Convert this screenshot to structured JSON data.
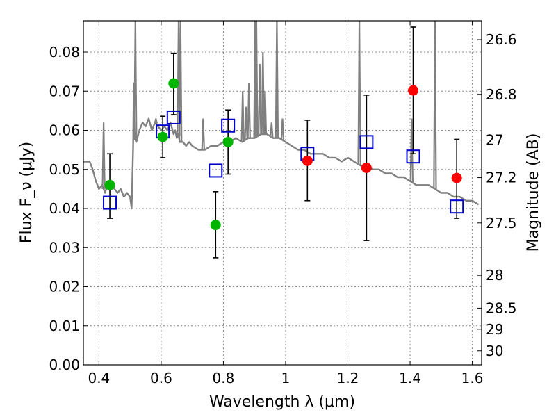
{
  "chart_data": {
    "type": "scatter",
    "xlabel": "Wavelength λ (μm)",
    "ylabel": "Flux F_ν (μJy)",
    "y2label": "Magnitude (AB)",
    "xlim": [
      0.35,
      1.63
    ],
    "ylim": [
      0.0,
      0.088
    ],
    "grid": true,
    "x_ticks": [
      0.4,
      0.6,
      0.8,
      1.0,
      1.2,
      1.4,
      1.6
    ],
    "x_tick_labels": [
      "0.4",
      "0.6",
      "0.8",
      "1",
      "1.2",
      "1.4",
      "1.6"
    ],
    "y_ticks": [
      0.0,
      0.01,
      0.02,
      0.03,
      0.04,
      0.05,
      0.06,
      0.07,
      0.08
    ],
    "y_tick_labels": [
      "0.00",
      "0.01",
      "0.02",
      "0.03",
      "0.04",
      "0.05",
      "0.06",
      "0.07",
      "0.08"
    ],
    "y2_ticks": [
      {
        "label": "26.6",
        "flux": 0.0832
      },
      {
        "label": "26.8",
        "flux": 0.0692
      },
      {
        "label": "27",
        "flux": 0.0575
      },
      {
        "label": "27.2",
        "flux": 0.0479
      },
      {
        "label": "27.5",
        "flux": 0.0363
      },
      {
        "label": "28",
        "flux": 0.0229
      },
      {
        "label": "28.5",
        "flux": 0.0145
      },
      {
        "label": "29",
        "flux": 0.0091
      },
      {
        "label": "30",
        "flux": 0.0036
      }
    ],
    "series": [
      {
        "type": "line",
        "color": "#808080",
        "x": [
          0.35,
          0.37,
          0.38,
          0.39,
          0.4,
          0.41,
          0.42,
          0.43,
          0.44,
          0.45,
          0.46,
          0.47,
          0.48,
          0.49,
          0.5,
          0.505,
          0.51,
          0.512,
          0.515,
          0.52,
          0.53,
          0.54,
          0.55,
          0.56,
          0.57,
          0.58,
          0.59,
          0.6,
          0.61,
          0.62,
          0.63,
          0.64,
          0.645,
          0.65,
          0.655,
          0.66,
          0.67,
          0.68,
          0.69,
          0.7,
          0.72,
          0.74,
          0.76,
          0.78,
          0.8,
          0.82,
          0.84,
          0.86,
          0.88,
          0.9,
          0.92,
          0.94,
          0.96,
          0.98,
          1.0,
          1.02,
          1.04,
          1.06,
          1.08,
          1.1,
          1.12,
          1.14,
          1.16,
          1.18,
          1.2,
          1.22,
          1.24,
          1.26,
          1.28,
          1.3,
          1.32,
          1.34,
          1.36,
          1.38,
          1.4,
          1.42,
          1.44,
          1.46,
          1.48,
          1.5,
          1.52,
          1.54,
          1.56,
          1.58,
          1.6,
          1.62
        ],
        "y": [
          0.052,
          0.052,
          0.05,
          0.047,
          0.045,
          0.046,
          0.044,
          0.047,
          0.046,
          0.045,
          0.044,
          0.045,
          0.043,
          0.044,
          0.043,
          0.04,
          0.056,
          0.072,
          0.058,
          0.057,
          0.06,
          0.062,
          0.061,
          0.063,
          0.06,
          0.062,
          0.061,
          0.06,
          0.061,
          0.06,
          0.062,
          0.059,
          0.06,
          0.058,
          0.059,
          0.057,
          0.057,
          0.056,
          0.057,
          0.056,
          0.055,
          0.055,
          0.056,
          0.056,
          0.057,
          0.057,
          0.058,
          0.057,
          0.058,
          0.058,
          0.059,
          0.059,
          0.058,
          0.058,
          0.057,
          0.056,
          0.055,
          0.055,
          0.054,
          0.054,
          0.054,
          0.053,
          0.053,
          0.052,
          0.053,
          0.052,
          0.051,
          0.051,
          0.05,
          0.05,
          0.049,
          0.049,
          0.048,
          0.048,
          0.047,
          0.046,
          0.046,
          0.046,
          0.045,
          0.044,
          0.044,
          0.043,
          0.043,
          0.042,
          0.042,
          0.041
        ]
      },
      {
        "type": "scatter",
        "marker": "circle",
        "color": "#00b400",
        "points": [
          {
            "x": 0.435,
            "y": 0.046,
            "ylo": 0.0375,
            "yhi": 0.054
          },
          {
            "x": 0.605,
            "y": 0.0583,
            "ylo": 0.053,
            "yhi": 0.0636
          },
          {
            "x": 0.64,
            "y": 0.072,
            "ylo": 0.064,
            "yhi": 0.0797
          },
          {
            "x": 0.775,
            "y": 0.0358,
            "ylo": 0.0274,
            "yhi": 0.0443
          },
          {
            "x": 0.815,
            "y": 0.057,
            "ylo": 0.0488,
            "yhi": 0.0652
          }
        ]
      },
      {
        "type": "scatter",
        "marker": "circle",
        "color": "#ff0000",
        "points": [
          {
            "x": 1.07,
            "y": 0.0522,
            "ylo": 0.042,
            "yhi": 0.0626
          },
          {
            "x": 1.26,
            "y": 0.0504,
            "ylo": 0.0318,
            "yhi": 0.069
          },
          {
            "x": 1.41,
            "y": 0.0702,
            "ylo": 0.054,
            "yhi": 0.0864
          },
          {
            "x": 1.55,
            "y": 0.0478,
            "ylo": 0.0375,
            "yhi": 0.0577
          }
        ]
      },
      {
        "type": "scatter",
        "marker": "open-square",
        "color": "#0000c8",
        "points": [
          {
            "x": 0.435,
            "y": 0.0415
          },
          {
            "x": 0.605,
            "y": 0.0597
          },
          {
            "x": 0.64,
            "y": 0.0633
          },
          {
            "x": 0.775,
            "y": 0.0497
          },
          {
            "x": 0.815,
            "y": 0.0612
          },
          {
            "x": 1.07,
            "y": 0.054
          },
          {
            "x": 1.26,
            "y": 0.057
          },
          {
            "x": 1.41,
            "y": 0.0533
          },
          {
            "x": 1.55,
            "y": 0.0405
          }
        ]
      }
    ],
    "emission_lines": [
      {
        "x": 0.517,
        "peak": 0.088
      },
      {
        "x": 0.656,
        "peak": 0.088
      },
      {
        "x": 0.662,
        "peak": 0.088
      },
      {
        "x": 0.902,
        "peak": 0.088
      },
      {
        "x": 0.906,
        "peak": 0.088
      },
      {
        "x": 0.972,
        "peak": 0.088
      },
      {
        "x": 1.237,
        "peak": 0.088
      },
      {
        "x": 1.48,
        "peak": 0.088
      },
      {
        "x": 0.735,
        "peak": 0.063
      },
      {
        "x": 0.862,
        "peak": 0.07
      },
      {
        "x": 0.873,
        "peak": 0.066
      },
      {
        "x": 0.882,
        "peak": 0.072
      },
      {
        "x": 0.917,
        "peak": 0.077
      },
      {
        "x": 0.927,
        "peak": 0.08
      },
      {
        "x": 0.934,
        "peak": 0.07
      },
      {
        "x": 0.955,
        "peak": 0.062
      },
      {
        "x": 0.99,
        "peak": 0.063
      },
      {
        "x": 1.405,
        "peak": 0.063
      },
      {
        "x": 0.583,
        "peak": 0.063
      },
      {
        "x": 0.415,
        "peak": 0.062
      }
    ]
  }
}
